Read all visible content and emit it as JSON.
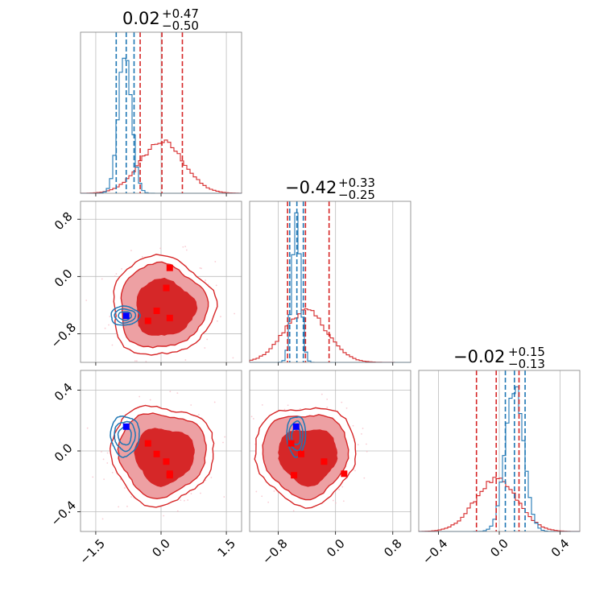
{
  "chart_data": {
    "type": "corner",
    "grid": true,
    "colors": {
      "red_series": "#d62728",
      "blue_series": "#1f77b4",
      "red_fill_dark": "#d62728",
      "red_fill_light": "#eda0a3",
      "scatter_pink": "#f7b6c2",
      "blue_marker": "#0000ff",
      "red_marker": "#ff0000",
      "grid": "#bdbdbd"
    },
    "titles": [
      {
        "value": "0.02",
        "plus": "+0.47",
        "minus": "−0.50"
      },
      {
        "value": "−0.42",
        "plus": "+0.33",
        "minus": "−0.25"
      },
      {
        "value": "−0.02",
        "plus": "+0.15",
        "minus": "−0.13"
      }
    ],
    "params": [
      {
        "range": [
          -1.85,
          1.85
        ],
        "ticks": [
          -1.5,
          0.0,
          1.5
        ],
        "tick_labels": [
          "−1.5",
          "0.0",
          "1.5"
        ]
      },
      {
        "range": [
          -1.2,
          1.05
        ],
        "ticks": [
          -0.8,
          0.0,
          0.8
        ],
        "tick_labels": [
          "−0.8",
          "0.0",
          "0.8"
        ]
      },
      {
        "range": [
          -0.53,
          0.53
        ],
        "ticks": [
          -0.4,
          0.0,
          0.4
        ],
        "tick_labels": [
          "−0.4",
          "0.0",
          "0.4"
        ]
      }
    ],
    "quantiles": {
      "red": [
        [
          -0.48,
          0.02,
          0.49
        ],
        [
          -0.67,
          -0.42,
          -0.09
        ],
        [
          -0.15,
          -0.02,
          0.13
        ]
      ],
      "blue": [
        [
          -1.03,
          -0.8,
          -0.62
        ],
        [
          -0.64,
          -0.54,
          -0.45
        ],
        [
          0.04,
          0.1,
          0.17
        ]
      ]
    },
    "markers": {
      "blue": [
        -0.8,
        -0.55,
        0.16
      ],
      "red": [
        [
          0.2,
          0.12,
          -0.15
        ],
        [
          0.12,
          -0.16,
          -0.07
        ],
        [
          -0.1,
          -0.48,
          -0.02
        ],
        [
          -0.3,
          -0.62,
          0.05
        ],
        [
          0.2,
          -0.58,
          -0.16
        ]
      ]
    },
    "diagonal": {
      "red_mean": [
        0.02,
        -0.42,
        -0.02
      ],
      "red_sd": [
        0.5,
        0.3,
        0.14
      ],
      "blue_mean": [
        -0.83,
        -0.55,
        0.1
      ],
      "blue_sd": [
        0.15,
        0.06,
        0.06
      ]
    }
  }
}
